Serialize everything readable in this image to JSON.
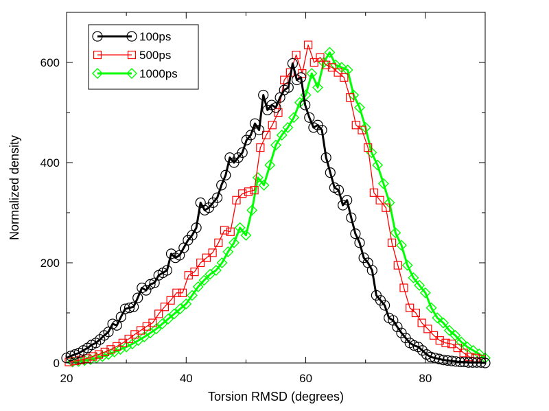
{
  "chart_data": {
    "type": "line",
    "title": "",
    "xlabel": "Torsion RMSD (degrees)",
    "ylabel": "Normalized density",
    "xlim": [
      20,
      90
    ],
    "ylim": [
      0,
      700
    ],
    "xticks": [
      20,
      40,
      60,
      80
    ],
    "yticks": [
      0,
      200,
      400,
      600
    ],
    "x_minor_step": 10,
    "y_minor_step": 100,
    "legend_position": "top-left",
    "series": [
      {
        "name": "100ps",
        "color": "#000000",
        "marker": "circle",
        "line_weight": "thick",
        "x": [
          20,
          20.7,
          21.4,
          22.1,
          22.8,
          23.5,
          24.2,
          24.9,
          25.6,
          26.3,
          27,
          27.7,
          28.4,
          29.1,
          29.8,
          30.5,
          31.2,
          31.9,
          32.6,
          33.3,
          34,
          34.7,
          35.4,
          36.1,
          36.8,
          37.5,
          38.2,
          38.9,
          39.6,
          40.3,
          41,
          41.7,
          42.4,
          43.1,
          43.8,
          44.5,
          45.2,
          45.9,
          46.6,
          47.3,
          48,
          48.7,
          49.4,
          50.1,
          50.8,
          51.5,
          52.2,
          52.9,
          53.6,
          54.3,
          55,
          55.7,
          56.4,
          57.1,
          57.8,
          58.5,
          59.2,
          59.9,
          60.6,
          61.3,
          62,
          62.7,
          63.4,
          64.1,
          64.8,
          65.5,
          66.2,
          66.9,
          67.6,
          68.3,
          69,
          69.7,
          70.4,
          71.1,
          71.8,
          72.5,
          73.2,
          73.9,
          74.6,
          75.3,
          76,
          76.7,
          77.4,
          78.1,
          78.8,
          79.5,
          80.2,
          80.9,
          81.6,
          82.3,
          83,
          83.7,
          84.4,
          85.1,
          85.8,
          86.5,
          87.2,
          87.9,
          88.6,
          89.3,
          90
        ],
        "y": [
          10,
          14,
          17,
          20,
          25,
          30,
          36,
          40,
          47,
          55,
          62,
          78,
          75,
          92,
          108,
          110,
          112,
          130,
          150,
          145,
          157,
          160,
          175,
          180,
          185,
          218,
          210,
          215,
          230,
          245,
          255,
          270,
          320,
          305,
          310,
          320,
          330,
          355,
          375,
          410,
          400,
          410,
          420,
          445,
          455,
          478,
          465,
          535,
          505,
          515,
          510,
          530,
          545,
          550,
          598,
          565,
          570,
          515,
          490,
          470,
          475,
          465,
          410,
          380,
          350,
          345,
          315,
          325,
          290,
          258,
          240,
          210,
          200,
          185,
          135,
          125,
          115,
          90,
          85,
          72,
          60,
          50,
          40,
          35,
          32,
          25,
          17,
          12,
          10,
          8,
          6,
          5,
          4,
          3,
          2,
          2,
          1,
          1,
          1,
          1,
          0
        ]
      },
      {
        "name": "500ps",
        "color": "#ff0000",
        "marker": "square",
        "line_weight": "thin",
        "x": [
          20.4,
          21.4,
          22.4,
          23.4,
          24.4,
          25.4,
          26.4,
          27.4,
          28.4,
          29.4,
          30.4,
          31.4,
          32.4,
          33.4,
          34.4,
          35.4,
          36.4,
          37.4,
          38.4,
          39.4,
          40.4,
          41.4,
          42.4,
          43.4,
          44.4,
          45.4,
          46.4,
          47.4,
          48.4,
          49.4,
          50.4,
          51.4,
          52.4,
          53.4,
          54.4,
          55.4,
          56.4,
          57.4,
          58.4,
          59.4,
          60.4,
          61.4,
          62.4,
          63.4,
          64.4,
          65.4,
          66.4,
          67.4,
          68.4,
          69.4,
          70.4,
          71.4,
          72.4,
          73.4,
          74.4,
          75.4,
          76.4,
          77.4,
          78.4,
          79.4,
          80.4,
          81.4,
          82.4,
          83.4,
          84.4,
          85.4,
          86.4,
          87.4,
          88.4,
          89.4
        ],
        "y": [
          2,
          4,
          6,
          9,
          13,
          17,
          22,
          27,
          33,
          40,
          48,
          57,
          65,
          73,
          80,
          98,
          112,
          125,
          140,
          140,
          175,
          182,
          200,
          210,
          220,
          240,
          265,
          262,
          325,
          338,
          342,
          345,
          430,
          455,
          475,
          500,
          565,
          580,
          615,
          578,
          635,
          600,
          610,
          595,
          590,
          580,
          570,
          530,
          475,
          465,
          430,
          340,
          325,
          310,
          240,
          195,
          150,
          110,
          100,
          80,
          68,
          55,
          45,
          40,
          38,
          30,
          20,
          12,
          10,
          8
        ]
      },
      {
        "name": "1000ps",
        "color": "#00ff00",
        "marker": "diamond",
        "line_weight": "thick",
        "x": [
          21,
          22,
          23,
          24,
          25,
          26,
          27,
          28,
          29,
          30,
          31,
          32,
          33,
          34,
          35,
          36,
          37,
          38,
          39,
          40,
          41,
          42,
          43,
          44,
          45,
          46,
          47,
          48,
          49,
          50,
          51,
          52,
          53,
          54,
          55,
          56,
          57,
          58,
          59,
          60,
          61,
          62,
          63,
          64,
          65,
          66,
          67,
          68,
          69,
          70,
          71,
          72,
          73,
          74,
          75,
          76,
          77,
          78,
          79,
          80,
          81,
          82,
          83,
          84,
          85,
          86,
          87,
          88,
          89,
          90
        ],
        "y": [
          2,
          3,
          5,
          7,
          10,
          13,
          17,
          22,
          27,
          32,
          38,
          45,
          52,
          60,
          68,
          78,
          88,
          98,
          108,
          118,
          135,
          152,
          165,
          177,
          185,
          200,
          222,
          240,
          270,
          255,
          305,
          370,
          355,
          395,
          435,
          455,
          470,
          490,
          520,
          535,
          578,
          550,
          600,
          620,
          595,
          590,
          585,
          535,
          510,
          470,
          420,
          395,
          358,
          320,
          260,
          235,
          195,
          170,
          155,
          140,
          110,
          90,
          80,
          65,
          55,
          42,
          32,
          25,
          18,
          10
        ]
      }
    ]
  }
}
